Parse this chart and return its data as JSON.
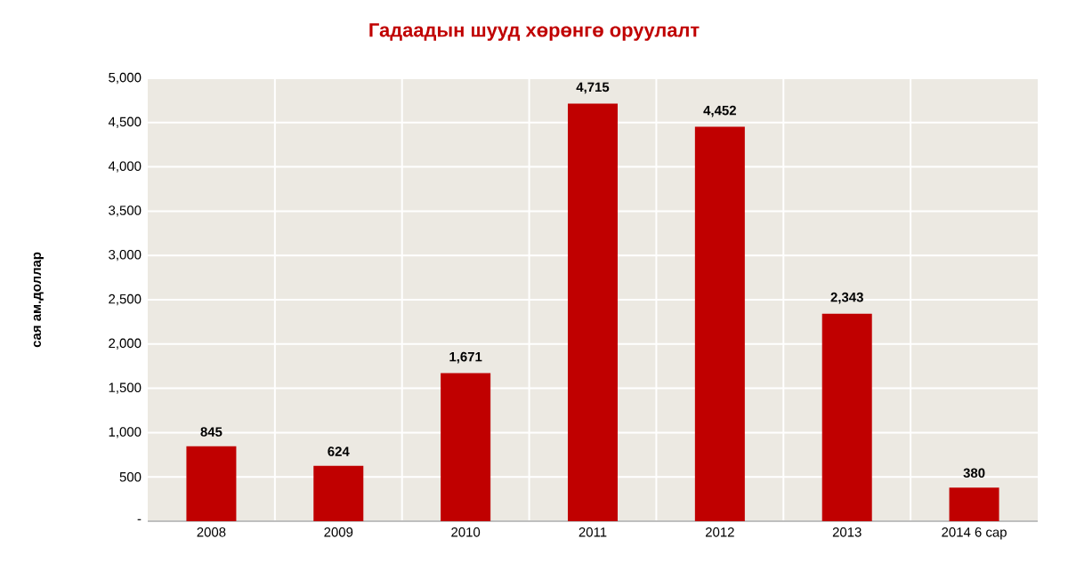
{
  "chart_data": {
    "type": "bar",
    "title": "Гадаадын шууд  хөрөнгө оруулалт",
    "ylabel": "сая ам.доллар",
    "categories": [
      "2008",
      "2009",
      "2010",
      "2011",
      "2012",
      "2013",
      "2014 6 сар"
    ],
    "values": [
      845,
      624,
      1671,
      4715,
      4452,
      2343,
      380
    ],
    "value_labels": [
      "845",
      "624",
      "1,671",
      "4,715",
      "4,452",
      "2,343",
      "380"
    ],
    "color": "#c00000",
    "ylim": [
      0,
      5000
    ],
    "yticks": [
      {
        "value": 0,
        "label": "-"
      },
      {
        "value": 500,
        "label": "500"
      },
      {
        "value": 1000,
        "label": "1,000"
      },
      {
        "value": 1500,
        "label": "1,500"
      },
      {
        "value": 2000,
        "label": "2,000"
      },
      {
        "value": 2500,
        "label": "2,500"
      },
      {
        "value": 3000,
        "label": "3,000"
      },
      {
        "value": 3500,
        "label": "3,500"
      },
      {
        "value": 4000,
        "label": "4,000"
      },
      {
        "value": 4500,
        "label": "4,500"
      },
      {
        "value": 5000,
        "label": "5,000"
      }
    ],
    "grid": true
  }
}
